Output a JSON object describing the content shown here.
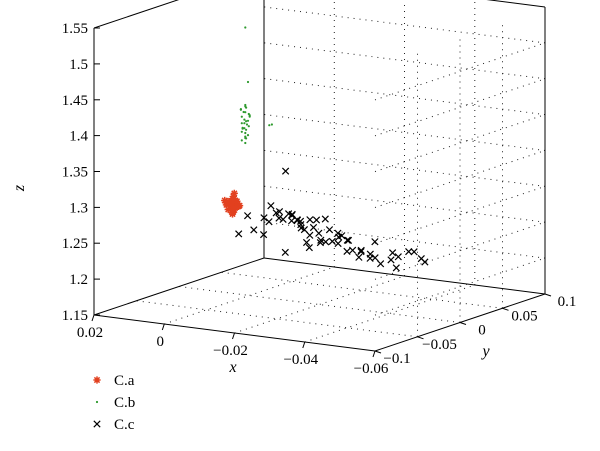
{
  "chart_data": {
    "type": "scatter",
    "xlabel": "x",
    "ylabel": "y",
    "zlabel": "z",
    "xlim": [
      -0.06,
      0.02
    ],
    "ylim": [
      -0.1,
      0.1
    ],
    "zlim": [
      1.15,
      1.55
    ],
    "x_ticks": [
      "−0.06",
      "−0.04",
      "−0.02",
      "0",
      "0.02"
    ],
    "y_ticks": [
      "−0.1",
      "−0.05",
      "0",
      "0.05",
      "0.1"
    ],
    "z_ticks": [
      "1.15",
      "1.2",
      "1.25",
      "1.3",
      "1.35",
      "1.4",
      "1.45",
      "1.5",
      "1.55"
    ],
    "grid": true,
    "legend_position": "bottom-left",
    "series": [
      {
        "name": "C.a",
        "marker": "asterisk",
        "color": "#e2401f",
        "points": [
          [
            0.02,
            0.063,
            1.242
          ],
          [
            0.02,
            0.065,
            1.238
          ],
          [
            0.02,
            0.062,
            1.236
          ],
          [
            0.021,
            0.064,
            1.24
          ],
          [
            0.019,
            0.064,
            1.244
          ],
          [
            0.021,
            0.066,
            1.235
          ],
          [
            0.02,
            0.061,
            1.241
          ],
          [
            0.022,
            0.064,
            1.237
          ],
          [
            0.019,
            0.062,
            1.246
          ],
          [
            0.02,
            0.066,
            1.243
          ],
          [
            0.021,
            0.062,
            1.232
          ],
          [
            0.02,
            0.064,
            1.25
          ],
          [
            0.02,
            0.063,
            1.228
          ],
          [
            0.022,
            0.066,
            1.241
          ],
          [
            0.018,
            0.063,
            1.239
          ],
          [
            0.019,
            0.061,
            1.233
          ],
          [
            0.021,
            0.067,
            1.245
          ],
          [
            0.02,
            0.065,
            1.254
          ],
          [
            0.021,
            0.06,
            1.242
          ],
          [
            0.019,
            0.066,
            1.236
          ],
          [
            0.022,
            0.062,
            1.244
          ],
          [
            0.02,
            0.063,
            1.226
          ],
          [
            0.017,
            0.057,
            1.242
          ],
          [
            0.018,
            0.058,
            1.238
          ]
        ]
      },
      {
        "name": "C.b",
        "marker": "dot",
        "color": "#2e9a2e",
        "points": [
          [
            0.02,
            0.078,
            1.372
          ],
          [
            0.02,
            0.079,
            1.368
          ],
          [
            0.021,
            0.077,
            1.365
          ],
          [
            0.02,
            0.078,
            1.362
          ],
          [
            0.019,
            0.079,
            1.358
          ],
          [
            0.021,
            0.078,
            1.355
          ],
          [
            0.02,
            0.077,
            1.352
          ],
          [
            0.02,
            0.079,
            1.349
          ],
          [
            0.021,
            0.078,
            1.346
          ],
          [
            0.019,
            0.078,
            1.343
          ],
          [
            0.02,
            0.077,
            1.34
          ],
          [
            0.02,
            0.079,
            1.337
          ],
          [
            0.021,
            0.078,
            1.334
          ],
          [
            0.019,
            0.077,
            1.331
          ],
          [
            0.02,
            0.078,
            1.328
          ],
          [
            0.02,
            0.079,
            1.325
          ],
          [
            0.021,
            0.078,
            1.322
          ],
          [
            0.019,
            0.078,
            1.36
          ],
          [
            0.02,
            0.077,
            1.347
          ],
          [
            0.021,
            0.079,
            1.339
          ],
          [
            0.02,
            0.078,
            1.333
          ],
          [
            0.019,
            0.079,
            1.356
          ],
          [
            0.02,
            0.078,
            1.37
          ],
          [
            0.021,
            0.077,
            1.366
          ],
          [
            0.02,
            0.078,
            1.326
          ],
          [
            0.02,
            0.08,
            1.344
          ],
          [
            0.019,
            0.077,
            1.351
          ],
          [
            0.021,
            0.079,
            1.338
          ],
          [
            0.02,
            0.076,
            1.363
          ],
          [
            0.02,
            0.078,
            1.319
          ],
          [
            0.01,
            0.068,
            1.355
          ],
          [
            0.011,
            0.069,
            1.353
          ],
          [
            0.019,
            0.077,
            1.405
          ],
          [
            0.02,
            0.078,
            1.48
          ]
        ]
      },
      {
        "name": "C.c",
        "marker": "cross",
        "color": "#000000",
        "points": [
          [
            -0.03,
            0.005,
            1.22
          ],
          [
            -0.032,
            0.01,
            1.218
          ],
          [
            -0.034,
            0.014,
            1.21
          ],
          [
            -0.036,
            0.018,
            1.215
          ],
          [
            -0.04,
            0.01,
            1.225
          ],
          [
            -0.042,
            0.014,
            1.232
          ],
          [
            -0.045,
            0.008,
            1.236
          ],
          [
            -0.048,
            0.004,
            1.23
          ],
          [
            -0.05,
            0.0,
            1.228
          ],
          [
            -0.038,
            0.016,
            1.206
          ],
          [
            -0.027,
            0.01,
            1.226
          ],
          [
            -0.025,
            0.012,
            1.238
          ],
          [
            -0.022,
            0.018,
            1.24
          ],
          [
            -0.02,
            0.015,
            1.232
          ],
          [
            -0.018,
            0.02,
            1.245
          ],
          [
            -0.016,
            0.018,
            1.23
          ],
          [
            -0.014,
            0.024,
            1.236
          ],
          [
            -0.012,
            0.026,
            1.242
          ],
          [
            -0.01,
            0.03,
            1.25
          ],
          [
            -0.008,
            0.028,
            1.238
          ],
          [
            -0.006,
            0.032,
            1.246
          ],
          [
            -0.004,
            0.034,
            1.252
          ],
          [
            -0.002,
            0.038,
            1.25
          ],
          [
            0.0,
            0.035,
            1.244
          ],
          [
            0.002,
            0.04,
            1.248
          ],
          [
            0.004,
            0.042,
            1.256
          ],
          [
            0.005,
            0.038,
            1.24
          ],
          [
            -0.015,
            0.028,
            1.223
          ],
          [
            -0.013,
            0.03,
            1.22
          ],
          [
            -0.011,
            0.022,
            1.222
          ],
          [
            -0.009,
            0.034,
            1.226
          ],
          [
            -0.007,
            0.036,
            1.232
          ],
          [
            -0.005,
            0.04,
            1.236
          ],
          [
            -0.003,
            0.044,
            1.24
          ],
          [
            -0.001,
            0.046,
            1.244
          ],
          [
            0.001,
            0.044,
            1.238
          ],
          [
            0.003,
            0.048,
            1.246
          ],
          [
            -0.019,
            0.026,
            1.224
          ],
          [
            -0.023,
            0.02,
            1.218
          ],
          [
            -0.028,
            0.016,
            1.224
          ],
          [
            -0.031,
            0.02,
            1.214
          ],
          [
            -0.035,
            0.024,
            1.222
          ],
          [
            -0.033,
            0.006,
            1.226
          ],
          [
            -0.029,
            0.028,
            1.232
          ],
          [
            -0.026,
            0.024,
            1.218
          ],
          [
            -0.021,
            0.03,
            1.228
          ],
          [
            -0.017,
            0.034,
            1.234
          ],
          [
            -0.024,
            0.006,
            1.244
          ],
          [
            -0.011,
            0.044,
            1.246
          ],
          [
            -0.008,
            0.046,
            1.242
          ],
          [
            -0.002,
            0.052,
            1.234
          ],
          [
            0.001,
            0.054,
            1.232
          ],
          [
            0.006,
            0.048,
            1.23
          ],
          [
            -0.006,
            0.018,
            1.32
          ],
          [
            -0.005,
            0.05,
            1.2
          ],
          [
            -0.003,
            0.03,
            1.2
          ],
          [
            0.008,
            0.05,
            1.21
          ],
          [
            0.012,
            0.055,
            1.212
          ],
          [
            0.015,
            0.06,
            1.228
          ],
          [
            0.018,
            0.062,
            1.2
          ]
        ]
      }
    ]
  }
}
